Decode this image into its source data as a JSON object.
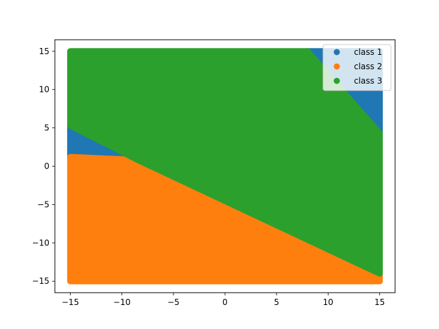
{
  "chart_data": {
    "type": "scatter",
    "title": "",
    "xlabel": "",
    "ylabel": "",
    "xlim": [
      -16.5,
      16.5
    ],
    "ylim": [
      -16.5,
      16.5
    ],
    "xticks": [
      -15,
      -10,
      -5,
      0,
      5,
      10,
      15
    ],
    "yticks": [
      -15,
      -10,
      -5,
      0,
      5,
      10,
      15
    ],
    "grid": false,
    "legend_position": "top-right",
    "series": [
      {
        "name": "class 1",
        "color": "#1f77b4",
        "region": [
          [
            -15,
            5.3
          ],
          [
            -15,
            1.2
          ],
          [
            -8.4,
            0.8
          ],
          [
            -15,
            5.3
          ]
        ],
        "region2": [
          [
            8.0,
            15
          ],
          [
            15,
            15
          ],
          [
            15,
            4.3
          ],
          [
            8.0,
            15
          ]
        ]
      },
      {
        "name": "class 2",
        "color": "#ff7f0e",
        "region": [
          [
            -15,
            -15
          ],
          [
            -15,
            1.2
          ],
          [
            -8.4,
            0.8
          ],
          [
            15,
            -14.0
          ],
          [
            15,
            -15
          ]
        ]
      },
      {
        "name": "class 3",
        "color": "#2ca02c",
        "region": [
          [
            -15,
            15
          ],
          [
            -15,
            5.3
          ],
          [
            -8.4,
            0.8
          ],
          [
            15,
            -14.0
          ],
          [
            15,
            4.3
          ],
          [
            8.0,
            15
          ]
        ]
      }
    ]
  }
}
